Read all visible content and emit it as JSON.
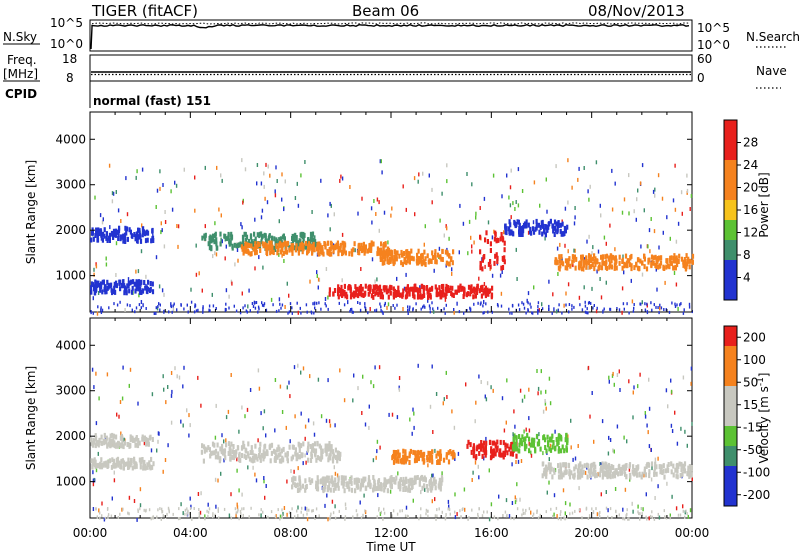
{
  "header": {
    "left": "TIGER (fitACF)",
    "center": "Beam 06",
    "right": "08/Nov/2013"
  },
  "nsky": {
    "label": "N.Sky",
    "ticks": [
      "10^5",
      "10^0"
    ],
    "right_label": "N.Search",
    "right_ticks": [
      "10^5",
      "10^0"
    ]
  },
  "freq": {
    "label1": "Freq.",
    "label2": "[MHz]",
    "ticks": [
      "18",
      "8"
    ],
    "right_label": "Nave",
    "right_ticks": [
      "60",
      "0"
    ]
  },
  "cpid": {
    "label": "CPID",
    "value": "normal (fast) 151"
  },
  "colors": {
    "red": "#e8201c",
    "orange": "#f5821e",
    "yellow": "#f6c31c",
    "green": "#5cc234",
    "teal": "#3f8f6c",
    "blue": "#2233d0",
    "gray": "#c8c8c0"
  },
  "chart_data": [
    {
      "type": "heatmap",
      "name": "power",
      "ylabel": "Slant Range [km]",
      "xlabel": "Time UT",
      "ylim": [
        200,
        4600
      ],
      "xlim": [
        0,
        24
      ],
      "yticks": [
        "1000",
        "2000",
        "3000",
        "4000"
      ],
      "xticks": [
        "00:00",
        "04:00",
        "08:00",
        "12:00",
        "16:00",
        "20:00",
        "00:00"
      ],
      "colorbar": {
        "label": "Power [dB]",
        "ticks": [
          "4",
          "8",
          "12",
          "16",
          "20",
          "24",
          "28"
        ]
      },
      "bands": [
        {
          "t": [
            0.0,
            2.5
          ],
          "r_center": 1950,
          "r_width": 300,
          "color": "blue"
        },
        {
          "t": [
            0.0,
            2.5
          ],
          "r_center": 800,
          "r_width": 250,
          "color": "blue"
        },
        {
          "t": [
            4.4,
            9.0
          ],
          "r_center": 1800,
          "r_width": 350,
          "color": "teal"
        },
        {
          "t": [
            6.0,
            12.0
          ],
          "r_center": 1650,
          "r_width": 250,
          "color": "orange"
        },
        {
          "t": [
            9.5,
            16.0
          ],
          "r_center": 700,
          "r_width": 250,
          "color": "red"
        },
        {
          "t": [
            11.5,
            14.5
          ],
          "r_center": 1450,
          "r_width": 300,
          "color": "orange"
        },
        {
          "t": [
            15.5,
            16.5
          ],
          "r_center": 1600,
          "r_width": 800,
          "color": "red"
        },
        {
          "t": [
            16.5,
            19.0
          ],
          "r_center": 2100,
          "r_width": 300,
          "color": "blue"
        },
        {
          "t": [
            18.5,
            24.0
          ],
          "r_center": 1350,
          "r_width": 300,
          "color": "orange"
        }
      ]
    },
    {
      "type": "heatmap",
      "name": "velocity",
      "ylabel": "Slant Range [km]",
      "xlabel": "Time UT",
      "ylim": [
        200,
        4600
      ],
      "xlim": [
        0,
        24
      ],
      "yticks": [
        "1000",
        "2000",
        "3000",
        "4000"
      ],
      "xticks": [
        "00:00",
        "04:00",
        "08:00",
        "12:00",
        "16:00",
        "20:00",
        "00:00"
      ],
      "colorbar": {
        "label": "Velocity [m s^-1]",
        "ticks": [
          "200",
          "100",
          "50",
          "15",
          "-15",
          "-50",
          "-100",
          "-200"
        ]
      },
      "bands": [
        {
          "t": [
            0.0,
            2.5
          ],
          "r_center": 1950,
          "r_width": 250,
          "color": "gray"
        },
        {
          "t": [
            0.0,
            2.5
          ],
          "r_center": 1450,
          "r_width": 200,
          "color": "gray"
        },
        {
          "t": [
            4.4,
            10.0
          ],
          "r_center": 1700,
          "r_width": 400,
          "color": "gray"
        },
        {
          "t": [
            8.0,
            14.0
          ],
          "r_center": 1000,
          "r_width": 300,
          "color": "gray"
        },
        {
          "t": [
            12.0,
            14.5
          ],
          "r_center": 1600,
          "r_width": 250,
          "color": "orange"
        },
        {
          "t": [
            15.0,
            17.0
          ],
          "r_center": 1750,
          "r_width": 350,
          "color": "red"
        },
        {
          "t": [
            16.8,
            19.0
          ],
          "r_center": 1900,
          "r_width": 350,
          "color": "green"
        },
        {
          "t": [
            18.0,
            24.0
          ],
          "r_center": 1300,
          "r_width": 300,
          "color": "gray"
        }
      ]
    }
  ]
}
